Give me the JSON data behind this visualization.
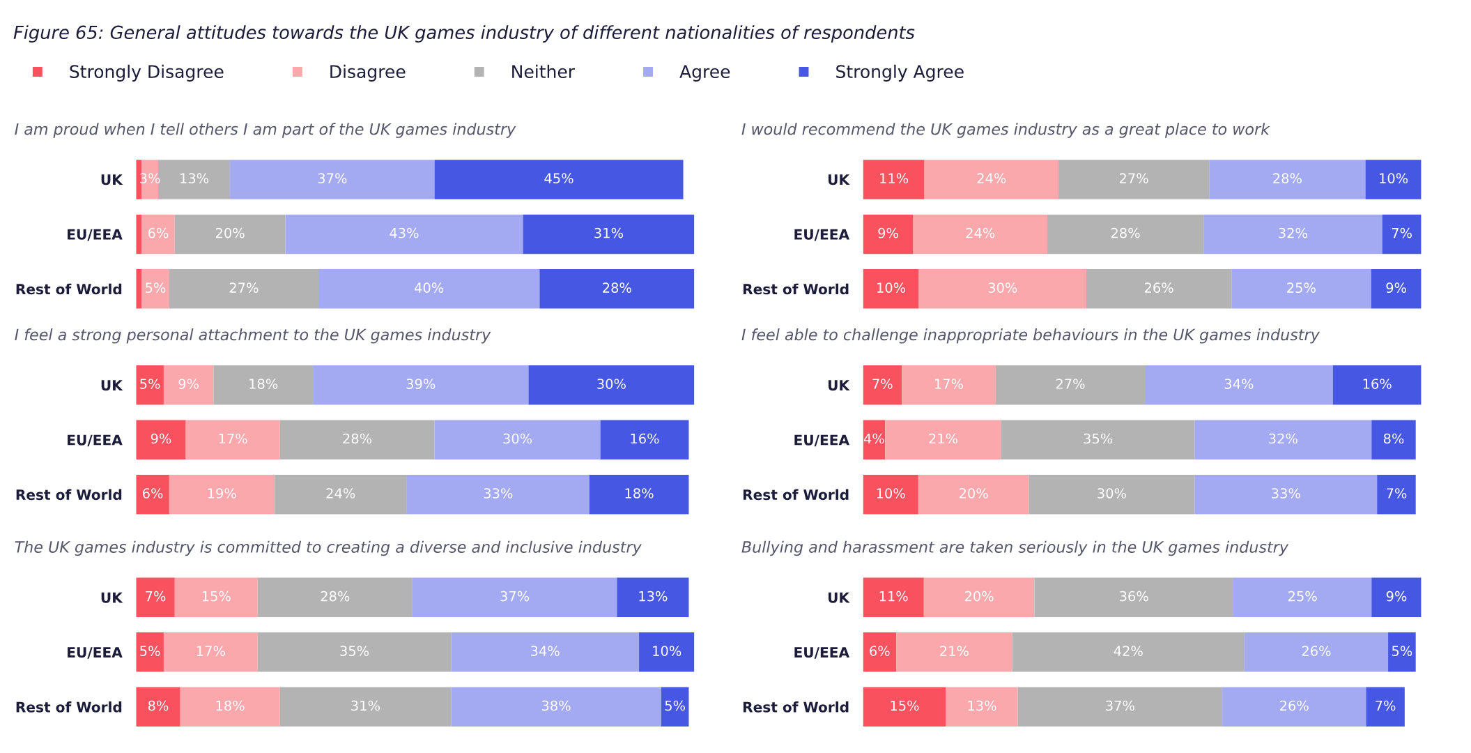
{
  "chart_data": [
    {
      "type": "bar",
      "orientation": "horizontal",
      "stacked": true,
      "legend": "top",
      "annotations": [
        "Figure 65: General attitudes towards the UK games industry of different nationalities of respondents"
      ],
      "title": "I am proud when I tell others I am part of the UK games industry",
      "categories": [
        "UK",
        "EU/EEA",
        "Rest of World"
      ],
      "series": [
        {
          "name": "Strongly Disagree",
          "color": "#f9525e",
          "values": [
            1,
            1,
            1
          ],
          "value_labels": [
            null,
            null,
            null
          ]
        },
        {
          "name": "Disagree",
          "color": "#fba8ad",
          "values": [
            3,
            6,
            5
          ],
          "value_labels": [
            "3%",
            "6%",
            "5%"
          ]
        },
        {
          "name": "Neither",
          "color": "#b3b3b3",
          "values": [
            13,
            20,
            27
          ],
          "value_labels": [
            "13%",
            "20%",
            "27%"
          ]
        },
        {
          "name": "Agree",
          "color": "#a3aaf1",
          "values": [
            37,
            43,
            40
          ],
          "value_labels": [
            "37%",
            "43%",
            "40%"
          ]
        },
        {
          "name": "Strongly Agree",
          "color": "#4657e4",
          "values": [
            45,
            31,
            28
          ],
          "value_labels": [
            "45%",
            "31%",
            "28%"
          ]
        }
      ]
    },
    {
      "type": "bar",
      "orientation": "horizontal",
      "stacked": true,
      "title": "I would recommend the UK games industry as a great place to work",
      "categories": [
        "UK",
        "EU/EEA",
        "Rest of World"
      ],
      "series": [
        {
          "color": "#f9525e",
          "values": [
            11,
            9,
            10
          ],
          "value_labels": [
            "11%",
            "9%",
            "10%"
          ]
        },
        {
          "color": "#fba8ad",
          "values": [
            24,
            24,
            30
          ],
          "value_labels": [
            "24%",
            "24%",
            "30%"
          ]
        },
        {
          "color": "#b3b3b3",
          "values": [
            27,
            28,
            26
          ],
          "value_labels": [
            "27%",
            "28%",
            "26%"
          ]
        },
        {
          "color": "#a3aaf1",
          "values": [
            28,
            32,
            25
          ],
          "value_labels": [
            "28%",
            "32%",
            "25%"
          ]
        },
        {
          "color": "#4657e4",
          "values": [
            10,
            7,
            9
          ],
          "value_labels": [
            "10%",
            "7%",
            "9%"
          ]
        }
      ]
    },
    {
      "type": "bar",
      "orientation": "horizontal",
      "stacked": true,
      "title": "I feel a strong personal attachment to the UK games industry",
      "categories": [
        "UK",
        "EU/EEA",
        "Rest of World"
      ],
      "series": [
        {
          "color": "#f9525e",
          "values": [
            5,
            9,
            6
          ],
          "value_labels": [
            "5%",
            "9%",
            "6%"
          ]
        },
        {
          "color": "#fba8ad",
          "values": [
            9,
            17,
            19
          ],
          "value_labels": [
            "9%",
            "17%",
            "19%"
          ]
        },
        {
          "color": "#b3b3b3",
          "values": [
            18,
            28,
            24
          ],
          "value_labels": [
            "18%",
            "28%",
            "24%"
          ]
        },
        {
          "color": "#a3aaf1",
          "values": [
            39,
            30,
            33
          ],
          "value_labels": [
            "39%",
            "30%",
            "33%"
          ]
        },
        {
          "color": "#4657e4",
          "values": [
            30,
            16,
            18
          ],
          "value_labels": [
            "30%",
            "16%",
            "18%"
          ]
        }
      ]
    },
    {
      "type": "bar",
      "orientation": "horizontal",
      "stacked": true,
      "title": "I feel able to challenge inappropriate behaviours in the UK games industry",
      "categories": [
        "UK",
        "EU/EEA",
        "Rest of World"
      ],
      "series": [
        {
          "color": "#f9525e",
          "values": [
            7,
            4,
            10
          ],
          "value_labels": [
            "7%",
            "4%",
            "10%"
          ]
        },
        {
          "color": "#fba8ad",
          "values": [
            17,
            21,
            20
          ],
          "value_labels": [
            "17%",
            "21%",
            "20%"
          ]
        },
        {
          "color": "#b3b3b3",
          "values": [
            27,
            35,
            30
          ],
          "value_labels": [
            "27%",
            "35%",
            "30%"
          ]
        },
        {
          "color": "#a3aaf1",
          "values": [
            34,
            32,
            33
          ],
          "value_labels": [
            "34%",
            "32%",
            "33%"
          ]
        },
        {
          "color": "#4657e4",
          "values": [
            16,
            8,
            7
          ],
          "value_labels": [
            "16%",
            "8%",
            "7%"
          ]
        }
      ]
    },
    {
      "type": "bar",
      "orientation": "horizontal",
      "stacked": true,
      "title": "The UK games industry is committed to creating a diverse and inclusive industry",
      "categories": [
        "UK",
        "EU/EEA",
        "Rest of World"
      ],
      "series": [
        {
          "color": "#f9525e",
          "values": [
            7,
            5,
            8
          ],
          "value_labels": [
            "7%",
            "5%",
            "8%"
          ]
        },
        {
          "color": "#fba8ad",
          "values": [
            15,
            17,
            18
          ],
          "value_labels": [
            "15%",
            "17%",
            "18%"
          ]
        },
        {
          "color": "#b3b3b3",
          "values": [
            28,
            35,
            31
          ],
          "value_labels": [
            "28%",
            "35%",
            "31%"
          ]
        },
        {
          "color": "#a3aaf1",
          "values": [
            37,
            34,
            38
          ],
          "value_labels": [
            "37%",
            "34%",
            "38%"
          ]
        },
        {
          "color": "#4657e4",
          "values": [
            13,
            10,
            5
          ],
          "value_labels": [
            "13%",
            "10%",
            "5%"
          ]
        }
      ]
    },
    {
      "type": "bar",
      "orientation": "horizontal",
      "stacked": true,
      "title": "Bullying and harassment are taken seriously in the UK games industry",
      "categories": [
        "UK",
        "EU/EEA",
        "Rest of World"
      ],
      "series": [
        {
          "color": "#f9525e",
          "values": [
            11,
            6,
            15
          ],
          "value_labels": [
            "11%",
            "6%",
            "15%"
          ]
        },
        {
          "color": "#fba8ad",
          "values": [
            20,
            21,
            13
          ],
          "value_labels": [
            "20%",
            "21%",
            "13%"
          ]
        },
        {
          "color": "#b3b3b3",
          "values": [
            36,
            42,
            37
          ],
          "value_labels": [
            "36%",
            "42%",
            "37%"
          ]
        },
        {
          "color": "#a3aaf1",
          "values": [
            25,
            26,
            26
          ],
          "value_labels": [
            "25%",
            "26%",
            "26%"
          ]
        },
        {
          "color": "#4657e4",
          "values": [
            9,
            5,
            7
          ],
          "value_labels": [
            "9%",
            "5%",
            "7%"
          ]
        }
      ]
    }
  ]
}
